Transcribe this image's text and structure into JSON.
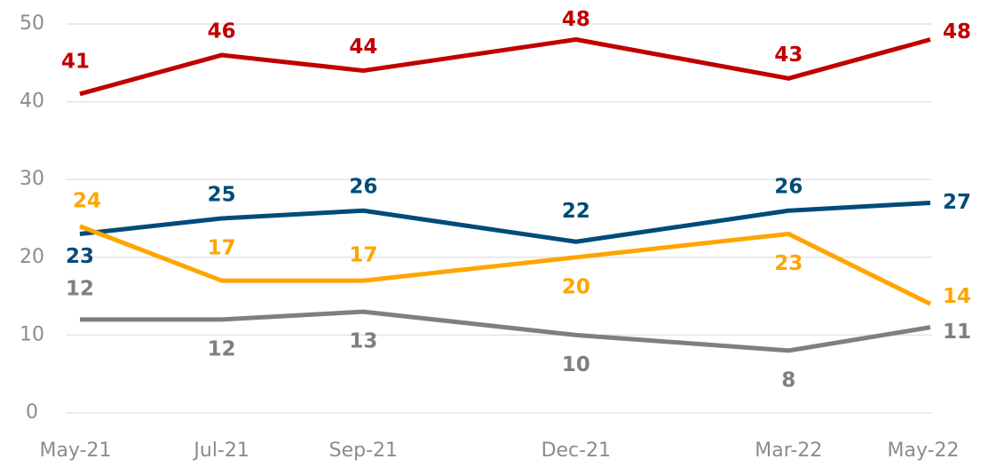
{
  "chart_data": {
    "type": "line",
    "categories": [
      "May-21",
      "Jul-21",
      "Sep-21",
      "Dec-21",
      "Mar-22",
      "May-22"
    ],
    "series": [
      {
        "color": "#c00000",
        "values": [
          41,
          46,
          44,
          48,
          43,
          48
        ]
      },
      {
        "color": "#004b7a",
        "values": [
          23,
          25,
          26,
          22,
          26,
          27
        ]
      },
      {
        "color": "#ffa500",
        "values": [
          24,
          17,
          17,
          20,
          23,
          14
        ]
      },
      {
        "color": "#7f7f7f",
        "values": [
          12,
          12,
          13,
          10,
          8,
          11
        ]
      }
    ],
    "ylim": [
      0,
      50
    ],
    "yticks": [
      0,
      10,
      20,
      30,
      40,
      50
    ],
    "grid": true
  }
}
